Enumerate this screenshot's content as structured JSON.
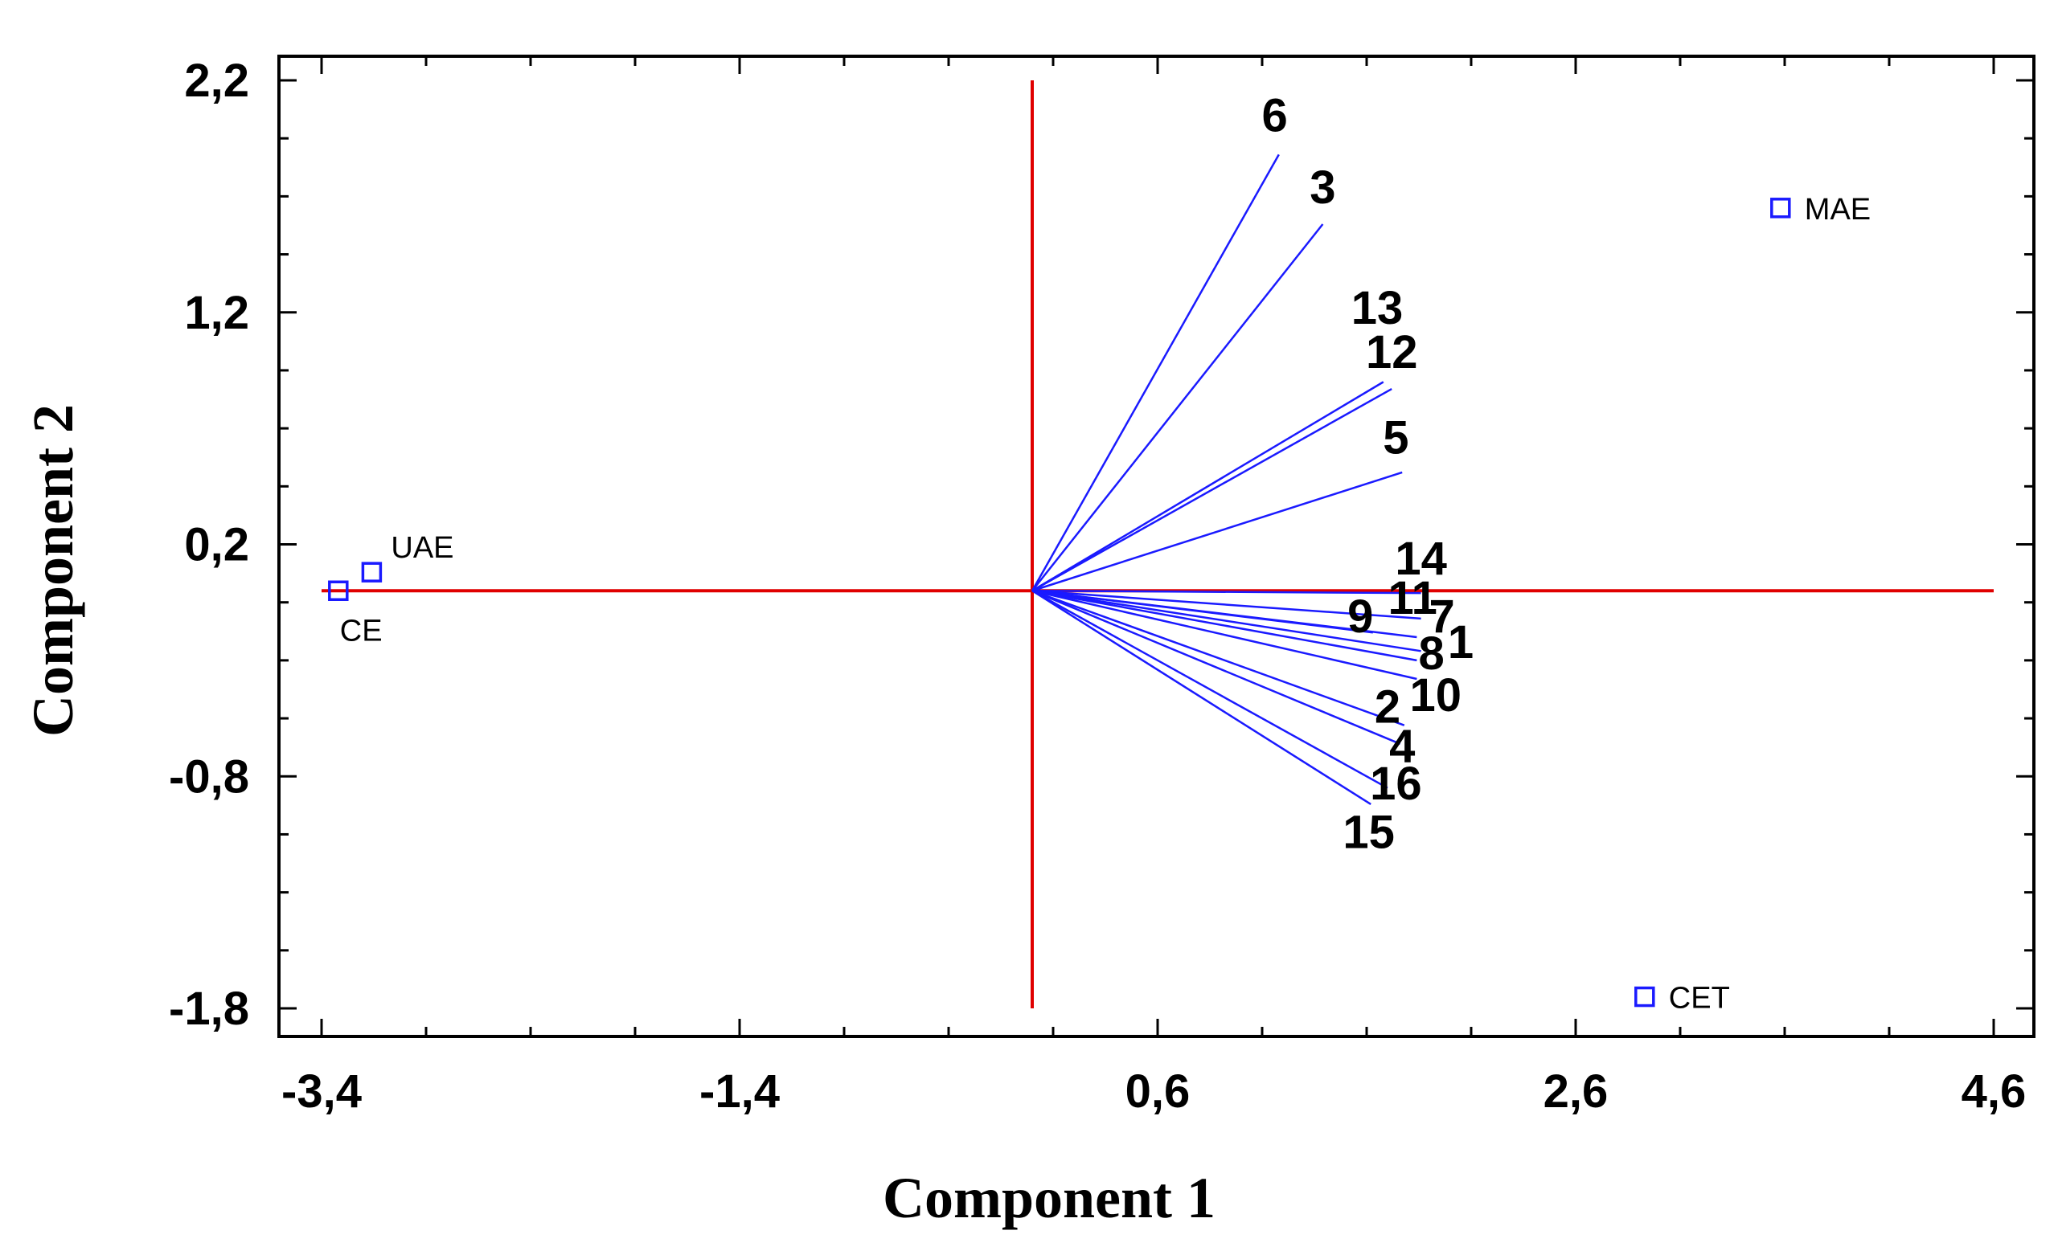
{
  "chart_data": {
    "type": "scatter",
    "subtype": "biplot",
    "xlabel": "Component 1",
    "ylabel": "Component 2",
    "xlim": [
      -3.4,
      4.6
    ],
    "ylim": [
      -1.8,
      2.2
    ],
    "x_ticks": [
      -3.4,
      -1.4,
      0.6,
      2.6,
      4.6
    ],
    "x_tick_labels": [
      "-3,4",
      "-1,4",
      "0,6",
      "2,6",
      "4,6"
    ],
    "y_ticks": [
      -1.8,
      -0.8,
      0.2,
      1.2,
      2.2
    ],
    "y_tick_labels": [
      "-1,8",
      "-0,8",
      "0,2",
      "1,2",
      "2,2"
    ],
    "grid": false,
    "reference_lines": {
      "color": "#e00000",
      "x": 0,
      "y": 0
    },
    "vector_color": "#1a1aff",
    "point_color": "#1a1aff",
    "vectors": [
      {
        "label": "6",
        "x": 1.18,
        "y": 1.88,
        "label_x": 1.16,
        "label_y": 2.05
      },
      {
        "label": "3",
        "x": 1.39,
        "y": 1.58,
        "label_x": 1.39,
        "label_y": 1.74
      },
      {
        "label": "13",
        "x": 1.68,
        "y": 0.9,
        "label_x": 1.65,
        "label_y": 1.22
      },
      {
        "label": "12",
        "x": 1.72,
        "y": 0.87,
        "label_x": 1.72,
        "label_y": 1.03
      },
      {
        "label": "5",
        "x": 1.77,
        "y": 0.51,
        "label_x": 1.74,
        "label_y": 0.66
      },
      {
        "label": "14",
        "x": 1.86,
        "y": -0.01,
        "label_x": 1.86,
        "label_y": 0.14
      },
      {
        "label": "11",
        "x": 1.86,
        "y": -0.12,
        "label_x": 1.82,
        "label_y": -0.03
      },
      {
        "label": "9",
        "x": 1.63,
        "y": -0.18,
        "label_x": 1.57,
        "label_y": -0.11
      },
      {
        "label": "7",
        "x": 1.84,
        "y": -0.2,
        "label_x": 1.96,
        "label_y": -0.11
      },
      {
        "label": "1",
        "x": 1.86,
        "y": -0.26,
        "label_x": 2.05,
        "label_y": -0.22
      },
      {
        "label": "8",
        "x": 1.84,
        "y": -0.3,
        "label_x": 1.91,
        "label_y": -0.27
      },
      {
        "label": "10",
        "x": 1.84,
        "y": -0.38,
        "label_x": 1.93,
        "label_y": -0.45
      },
      {
        "label": "2",
        "x": 1.78,
        "y": -0.58,
        "label_x": 1.7,
        "label_y": -0.5
      },
      {
        "label": "4",
        "x": 1.76,
        "y": -0.66,
        "label_x": 1.77,
        "label_y": -0.67
      },
      {
        "label": "16",
        "x": 1.7,
        "y": -0.85,
        "label_x": 1.74,
        "label_y": -0.83
      },
      {
        "label": "15",
        "x": 1.62,
        "y": -0.92,
        "label_x": 1.61,
        "label_y": -1.04
      }
    ],
    "points": [
      {
        "label": "MAE",
        "x": 3.58,
        "y": 1.65,
        "label_pos": "right"
      },
      {
        "label": "UAE",
        "x": -3.16,
        "y": 0.08,
        "label_pos": "above-right"
      },
      {
        "label": "CE",
        "x": -3.32,
        "y": 0.0,
        "label_pos": "below"
      },
      {
        "label": "CET",
        "x": 2.93,
        "y": -1.75,
        "label_pos": "right"
      }
    ]
  }
}
